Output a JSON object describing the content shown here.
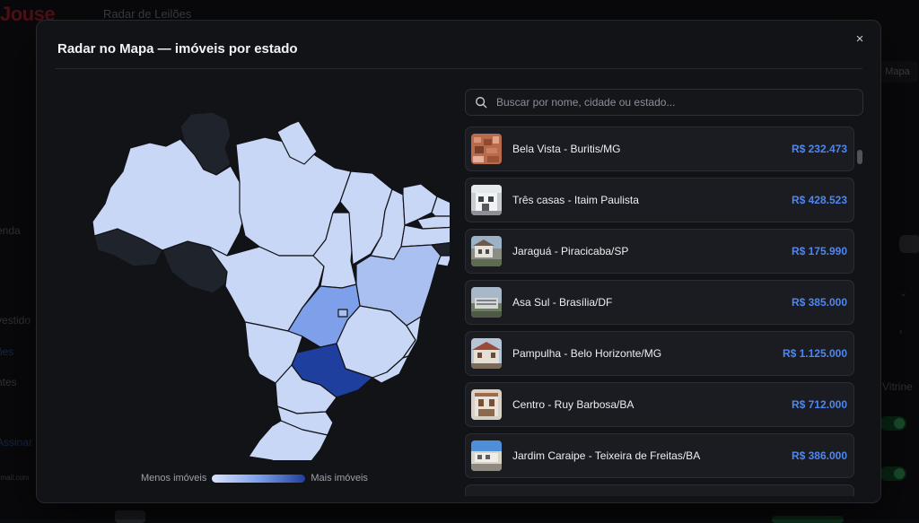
{
  "background": {
    "logo": "Jouse",
    "page_title": "Radar de Leilões",
    "side_items": [
      "enda",
      "vestido",
      "ões",
      "ntes",
      "Assinar",
      "email.com"
    ],
    "right_button": "Mapa",
    "right_text": "Vitrine"
  },
  "modal": {
    "title": "Radar no Mapa — imóveis por estado",
    "close_label": "×"
  },
  "map": {
    "legend_min": "Menos imóveis",
    "legend_max": "Mais imóveis",
    "colors": {
      "none": "#1f232b",
      "low": "#c9d7f6",
      "mid": "#a9c0f0",
      "midhigh": "#7ea0ea",
      "high": "#1f3f9e"
    }
  },
  "search": {
    "placeholder": "Buscar por nome, cidade ou estado..."
  },
  "listings": [
    {
      "name": "Bela Vista - Buritis/MG",
      "price": "R$ 232.473"
    },
    {
      "name": "Três casas - Itaim Paulista",
      "price": "R$ 428.523"
    },
    {
      "name": "Jaraguá - Piracicaba/SP",
      "price": "R$ 175.990"
    },
    {
      "name": "Asa Sul - Brasília/DF",
      "price": "R$ 385.000"
    },
    {
      "name": "Pampulha - Belo Horizonte/MG",
      "price": "R$ 1.125.000"
    },
    {
      "name": "Centro - Ruy Barbosa/BA",
      "price": "R$ 712.000"
    },
    {
      "name": "Jardim Caraipe - Teixeira de Freitas/BA",
      "price": "R$ 386.000"
    }
  ]
}
